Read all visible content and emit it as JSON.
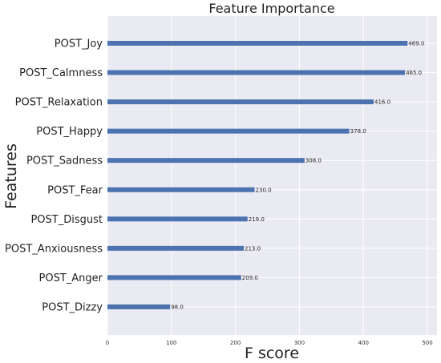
{
  "chart_data": {
    "type": "bar",
    "orientation": "horizontal",
    "title": "Feature Importance",
    "xlabel": "F score",
    "ylabel": "Features",
    "categories": [
      "POST_Joy",
      "POST_Calmness",
      "POST_Relaxation",
      "POST_Happy",
      "POST_Sadness",
      "POST_Fear",
      "POST_Disgust",
      "POST_Anxiousness",
      "POST_Anger",
      "POST_Dizzy"
    ],
    "values": [
      469,
      465,
      416,
      378,
      308,
      230,
      219,
      213,
      209,
      98
    ],
    "value_labels": [
      "469.0",
      "465.0",
      "416.0",
      "378.0",
      "308.0",
      "230.0",
      "219.0",
      "213.0",
      "209.0",
      "98.0"
    ],
    "xlim": [
      0,
      515
    ],
    "xticks": [
      0,
      100,
      200,
      300,
      400,
      500
    ],
    "grid": true,
    "colors": {
      "bar": "#4c72b0",
      "background": "#eaeaf2",
      "grid": "#ffffff"
    }
  }
}
